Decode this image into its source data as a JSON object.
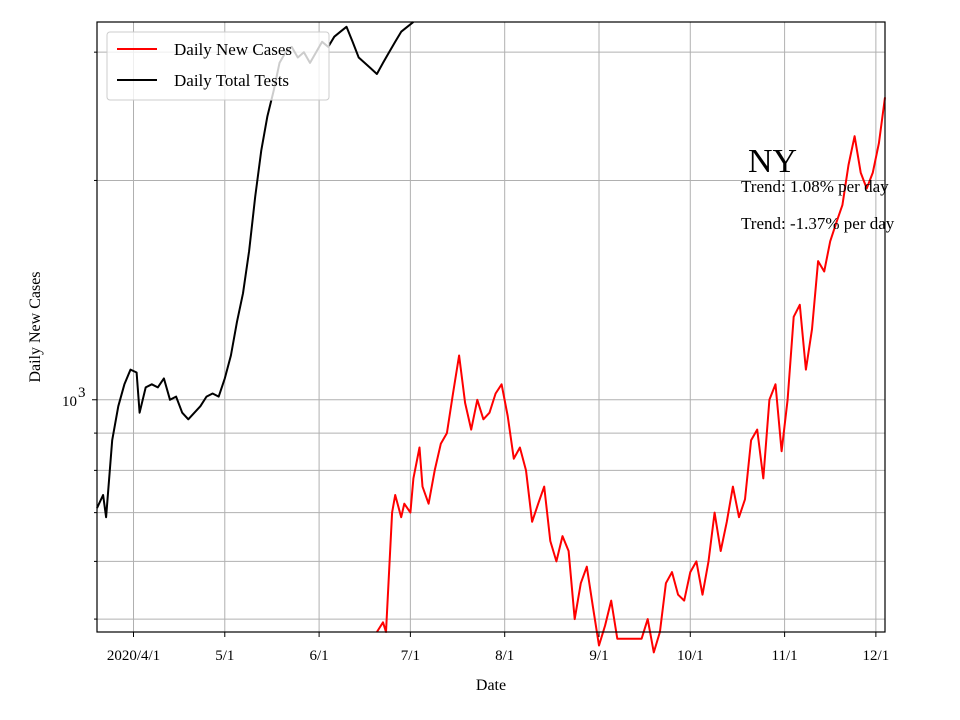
{
  "chart_data": {
    "type": "line",
    "title": "",
    "xlabel": "Date",
    "ylabel": "Daily New Cases",
    "yscale": "log",
    "ylim": [
      480,
      3300
    ],
    "xlim": [
      "2020-03-20",
      "2020-12-04"
    ],
    "grid": true,
    "legend_position": "upper-left",
    "x_ticks": [
      {
        "date": "2020-04-01",
        "label": "2020/4/1"
      },
      {
        "date": "2020-05-01",
        "label": "5/1"
      },
      {
        "date": "2020-06-01",
        "label": "6/1"
      },
      {
        "date": "2020-07-01",
        "label": "7/1"
      },
      {
        "date": "2020-08-01",
        "label": "8/1"
      },
      {
        "date": "2020-09-01",
        "label": "9/1"
      },
      {
        "date": "2020-10-01",
        "label": "10/1"
      },
      {
        "date": "2020-11-01",
        "label": "11/1"
      },
      {
        "date": "2020-12-01",
        "label": "12/1"
      }
    ],
    "y_ticks_major": [
      {
        "value": 1000,
        "base": "10",
        "exp": "3"
      }
    ],
    "y_ticks_minor": [
      500,
      600,
      700,
      800,
      900,
      2000,
      3000
    ],
    "annotation": {
      "state": "NY",
      "trend_1": "Trend: 1.08% per day",
      "trend_2": "Trend: -1.37% per day"
    },
    "series": [
      {
        "name": "Daily New Cases",
        "color": "#ff0000",
        "points": [
          [
            "2020-06-20",
            480
          ],
          [
            "2020-06-22",
            495
          ],
          [
            "2020-06-23",
            480
          ],
          [
            "2020-06-25",
            700
          ],
          [
            "2020-06-26",
            740
          ],
          [
            "2020-06-28",
            690
          ],
          [
            "2020-06-29",
            720
          ],
          [
            "2020-07-01",
            700
          ],
          [
            "2020-07-02",
            780
          ],
          [
            "2020-07-04",
            860
          ],
          [
            "2020-07-05",
            760
          ],
          [
            "2020-07-07",
            720
          ],
          [
            "2020-07-09",
            800
          ],
          [
            "2020-07-11",
            870
          ],
          [
            "2020-07-13",
            900
          ],
          [
            "2020-07-15",
            1020
          ],
          [
            "2020-07-17",
            1150
          ],
          [
            "2020-07-19",
            990
          ],
          [
            "2020-07-21",
            910
          ],
          [
            "2020-07-23",
            1000
          ],
          [
            "2020-07-25",
            940
          ],
          [
            "2020-07-27",
            960
          ],
          [
            "2020-07-29",
            1020
          ],
          [
            "2020-07-31",
            1050
          ],
          [
            "2020-08-02",
            950
          ],
          [
            "2020-08-04",
            830
          ],
          [
            "2020-08-06",
            860
          ],
          [
            "2020-08-08",
            800
          ],
          [
            "2020-08-10",
            680
          ],
          [
            "2020-08-12",
            720
          ],
          [
            "2020-08-14",
            760
          ],
          [
            "2020-08-16",
            640
          ],
          [
            "2020-08-18",
            600
          ],
          [
            "2020-08-20",
            650
          ],
          [
            "2020-08-22",
            620
          ],
          [
            "2020-08-24",
            500
          ],
          [
            "2020-08-26",
            560
          ],
          [
            "2020-08-28",
            590
          ],
          [
            "2020-08-30",
            520
          ],
          [
            "2020-09-01",
            460
          ],
          [
            "2020-09-03",
            490
          ],
          [
            "2020-09-05",
            530
          ],
          [
            "2020-09-07",
            470
          ],
          [
            "2020-09-15",
            470
          ],
          [
            "2020-09-17",
            500
          ],
          [
            "2020-09-19",
            450
          ],
          [
            "2020-09-21",
            480
          ],
          [
            "2020-09-23",
            560
          ],
          [
            "2020-09-25",
            580
          ],
          [
            "2020-09-27",
            540
          ],
          [
            "2020-09-29",
            530
          ],
          [
            "2020-10-01",
            580
          ],
          [
            "2020-10-03",
            600
          ],
          [
            "2020-10-05",
            540
          ],
          [
            "2020-10-07",
            600
          ],
          [
            "2020-10-09",
            700
          ],
          [
            "2020-10-11",
            620
          ],
          [
            "2020-10-13",
            680
          ],
          [
            "2020-10-15",
            760
          ],
          [
            "2020-10-17",
            690
          ],
          [
            "2020-10-19",
            730
          ],
          [
            "2020-10-21",
            880
          ],
          [
            "2020-10-23",
            910
          ],
          [
            "2020-10-25",
            780
          ],
          [
            "2020-10-27",
            1000
          ],
          [
            "2020-10-29",
            1050
          ],
          [
            "2020-10-31",
            850
          ],
          [
            "2020-11-02",
            1000
          ],
          [
            "2020-11-04",
            1300
          ],
          [
            "2020-11-06",
            1350
          ],
          [
            "2020-11-08",
            1100
          ],
          [
            "2020-11-10",
            1250
          ],
          [
            "2020-11-12",
            1550
          ],
          [
            "2020-11-14",
            1500
          ],
          [
            "2020-11-16",
            1650
          ],
          [
            "2020-11-18",
            1750
          ],
          [
            "2020-11-20",
            1850
          ],
          [
            "2020-11-22",
            2100
          ],
          [
            "2020-11-24",
            2300
          ],
          [
            "2020-11-26",
            2050
          ],
          [
            "2020-11-28",
            1950
          ],
          [
            "2020-11-30",
            2050
          ],
          [
            "2020-12-02",
            2250
          ],
          [
            "2020-12-04",
            2600
          ]
        ]
      },
      {
        "name": "Daily Total Tests",
        "color": "#000000",
        "points": [
          [
            "2020-03-20",
            710
          ],
          [
            "2020-03-22",
            740
          ],
          [
            "2020-03-23",
            690
          ],
          [
            "2020-03-25",
            880
          ],
          [
            "2020-03-27",
            980
          ],
          [
            "2020-03-29",
            1050
          ],
          [
            "2020-03-31",
            1100
          ],
          [
            "2020-04-02",
            1090
          ],
          [
            "2020-04-03",
            960
          ],
          [
            "2020-04-05",
            1040
          ],
          [
            "2020-04-07",
            1050
          ],
          [
            "2020-04-09",
            1040
          ],
          [
            "2020-04-11",
            1070
          ],
          [
            "2020-04-13",
            1000
          ],
          [
            "2020-04-15",
            1010
          ],
          [
            "2020-04-17",
            960
          ],
          [
            "2020-04-19",
            940
          ],
          [
            "2020-04-21",
            960
          ],
          [
            "2020-04-23",
            980
          ],
          [
            "2020-04-25",
            1010
          ],
          [
            "2020-04-27",
            1020
          ],
          [
            "2020-04-29",
            1010
          ],
          [
            "2020-05-01",
            1070
          ],
          [
            "2020-05-03",
            1150
          ],
          [
            "2020-05-05",
            1280
          ],
          [
            "2020-05-07",
            1400
          ],
          [
            "2020-05-09",
            1600
          ],
          [
            "2020-05-11",
            1900
          ],
          [
            "2020-05-13",
            2200
          ],
          [
            "2020-05-15",
            2450
          ],
          [
            "2020-05-17",
            2650
          ],
          [
            "2020-05-19",
            2900
          ],
          [
            "2020-05-21",
            3000
          ],
          [
            "2020-05-23",
            3050
          ],
          [
            "2020-05-25",
            2950
          ],
          [
            "2020-05-27",
            3000
          ],
          [
            "2020-05-29",
            2900
          ],
          [
            "2020-05-31",
            3000
          ],
          [
            "2020-06-02",
            3100
          ],
          [
            "2020-06-04",
            3050
          ],
          [
            "2020-06-06",
            3150
          ],
          [
            "2020-06-08",
            3200
          ],
          [
            "2020-06-10",
            3250
          ],
          [
            "2020-06-12",
            3100
          ],
          [
            "2020-06-14",
            2950
          ],
          [
            "2020-06-16",
            2900
          ],
          [
            "2020-06-18",
            2850
          ],
          [
            "2020-06-20",
            2800
          ],
          [
            "2020-06-22",
            2900
          ],
          [
            "2020-06-24",
            3000
          ],
          [
            "2020-06-26",
            3100
          ],
          [
            "2020-06-28",
            3200
          ],
          [
            "2020-06-30",
            3250
          ],
          [
            "2020-07-02",
            3300
          ]
        ]
      }
    ]
  }
}
